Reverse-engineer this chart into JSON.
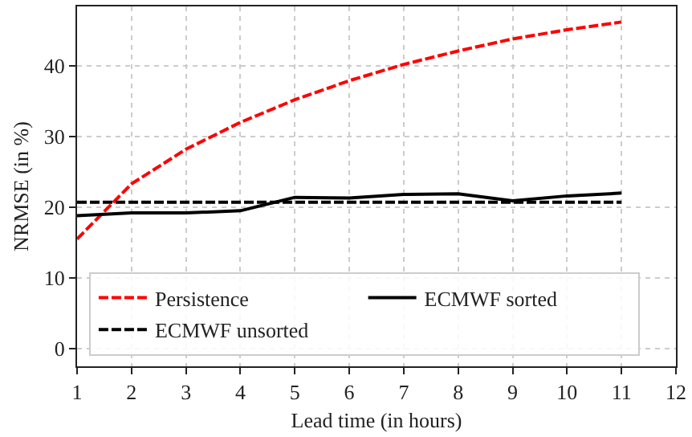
{
  "chart_data": {
    "type": "line",
    "xlabel": "Lead time (in hours)",
    "ylabel": "NRMSE (in %)",
    "x": [
      1,
      2,
      3,
      4,
      5,
      6,
      7,
      8,
      9,
      10,
      11
    ],
    "series": [
      {
        "name": "Persistence",
        "color": "#ff0000",
        "line_style": "dashed",
        "values": [
          15.5,
          23.3,
          28.2,
          32,
          35.2,
          37.9,
          40.2,
          42.1,
          43.8,
          45.1,
          46.2
        ]
      },
      {
        "name": "ECMWF sorted",
        "color": "#000000",
        "line_style": "solid",
        "values": [
          18.8,
          19.2,
          19.2,
          19.5,
          21.4,
          21.3,
          21.8,
          21.9,
          20.9,
          21.6,
          22.0
        ]
      },
      {
        "name": "ECMWF unsorted",
        "color": "#000000",
        "line_style": "dashed",
        "values": [
          20.7,
          20.7,
          20.7,
          20.7,
          20.7,
          20.7,
          20.7,
          20.7,
          20.7,
          20.7,
          20.7
        ]
      }
    ],
    "xlim": [
      1,
      12
    ],
    "xticks": [
      1,
      2,
      3,
      4,
      5,
      6,
      7,
      8,
      9,
      10,
      11,
      12
    ],
    "ylim": [
      -2.5,
      48.4
    ],
    "yticks": [
      0,
      10,
      20,
      30,
      40
    ],
    "grid": true,
    "legend": "bottom left",
    "marker": "none"
  }
}
